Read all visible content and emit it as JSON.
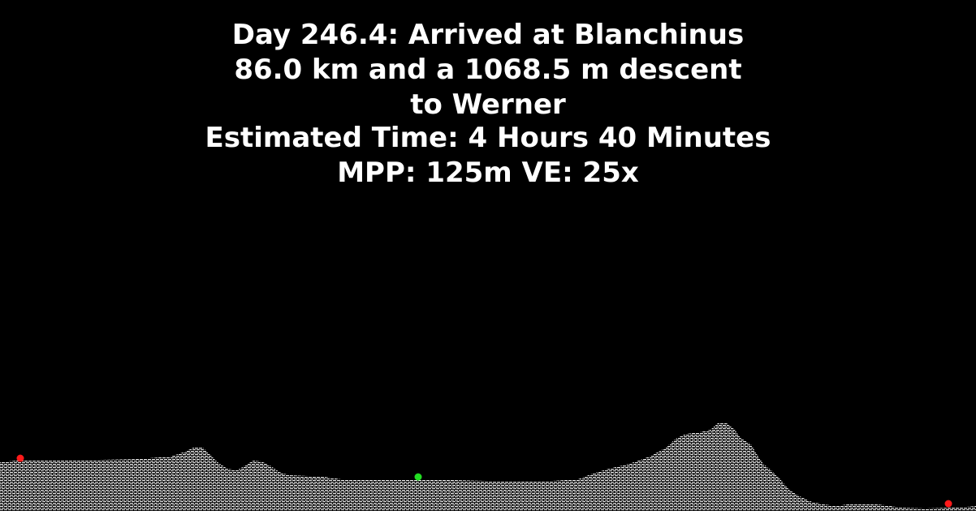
{
  "header": {
    "line1": "Day 246.4: Arrived at Blanchinus",
    "line2": "86.0 km and a 1068.5 m descent to Werner",
    "line3": "Estimated Time: 4 Hours 40 Minutes",
    "line4": "MPP: 125m VE: 25x"
  },
  "profile": {
    "fill_color": "#ffffff",
    "background_color": "#000000",
    "markers": [
      {
        "name": "start",
        "color": "#ff1a1a",
        "km": 0.0
      },
      {
        "name": "current",
        "color": "#22dd22",
        "km": 40.8
      },
      {
        "name": "end",
        "color": "#ff1a1a",
        "km": 86.0
      }
    ]
  }
}
